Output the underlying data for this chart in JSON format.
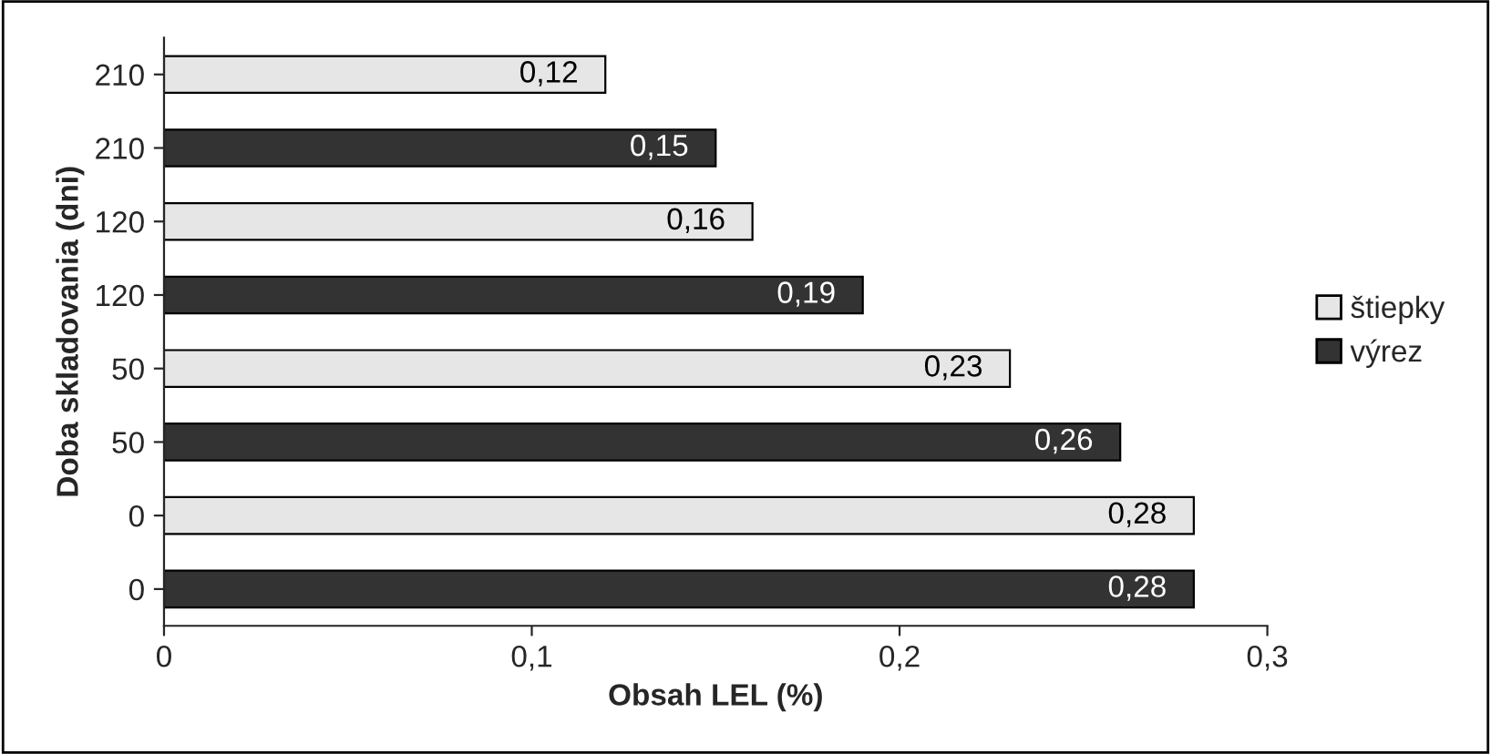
{
  "chart_data": {
    "type": "bar",
    "orientation": "horizontal",
    "xlabel": "Obsah LEL (%)",
    "ylabel": "Doba skladovania (dni)",
    "categories": [
      "210",
      "210",
      "120",
      "120",
      "50",
      "50",
      "0",
      "0"
    ],
    "series": [
      {
        "name": "štiepky",
        "color": "#e6e6e6",
        "values": [
          0.12,
          null,
          0.16,
          null,
          0.23,
          null,
          0.28,
          null
        ],
        "value_labels": [
          "0,12",
          null,
          "0,16",
          null,
          "0,23",
          null,
          "0,28",
          null
        ]
      },
      {
        "name": "výrez",
        "color": "#333333",
        "values": [
          null,
          0.15,
          null,
          0.19,
          null,
          0.26,
          null,
          0.28
        ],
        "value_labels": [
          null,
          "0,15",
          null,
          "0,19",
          null,
          "0,26",
          null,
          "0,28"
        ]
      }
    ],
    "xlim": [
      0,
      0.3
    ],
    "xticks": [
      0,
      {
        "value": 0.1,
        "label": "0,1"
      },
      {
        "value": 0.2,
        "label": "0,2"
      },
      {
        "value": 0.3,
        "label": "0,3"
      }
    ],
    "grid": false,
    "legend": "right"
  }
}
